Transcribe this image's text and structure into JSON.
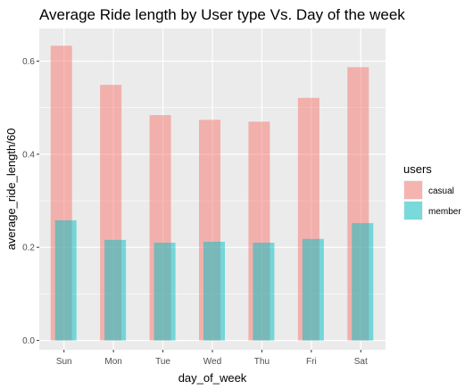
{
  "chart_data": {
    "type": "bar",
    "title": "Average Ride length by User type Vs. Day of the week",
    "xlabel": "day_of_week",
    "ylabel": "average_ride_length/60",
    "categories": [
      "Sun",
      "Mon",
      "Tue",
      "Wed",
      "Thu",
      "Fri",
      "Sat"
    ],
    "series": [
      {
        "name": "casual",
        "values": [
          0.633,
          0.549,
          0.484,
          0.474,
          0.47,
          0.521,
          0.587
        ],
        "color": "#F8766D"
      },
      {
        "name": "member",
        "values": [
          0.258,
          0.216,
          0.21,
          0.212,
          0.21,
          0.218,
          0.252
        ],
        "color": "#00BFC4"
      }
    ],
    "ylim": [
      -0.02,
      0.67
    ],
    "yticks": [
      0.0,
      0.2,
      0.4,
      0.6
    ],
    "ytick_labels": [
      "0.0",
      "0.2",
      "0.4",
      "0.6"
    ],
    "bar_layout": "overlap",
    "grid": true,
    "legend": {
      "title": "users",
      "placement": "right"
    }
  }
}
